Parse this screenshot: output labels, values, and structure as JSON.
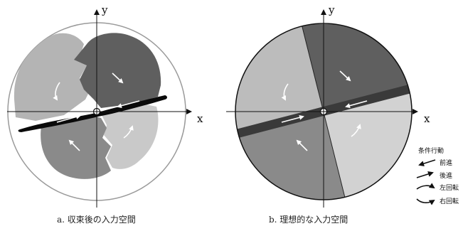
{
  "panel_a": {
    "caption": "a. 収束後の入力空間",
    "axis_x": "x",
    "axis_y": "y"
  },
  "panel_b": {
    "caption": "b. 理想的な入力空間",
    "axis_x": "x",
    "axis_y": "y"
  },
  "legend": {
    "title": "条件行動",
    "items": [
      {
        "icon": "arrow-left-icon",
        "label": "前進"
      },
      {
        "icon": "arrow-right-icon",
        "label": "後進"
      },
      {
        "icon": "curve-left-icon",
        "label": "左回転"
      },
      {
        "icon": "curve-right-icon",
        "label": "右回転"
      }
    ]
  },
  "colors": {
    "dark": "#5a5a5a",
    "mid": "#8c8c8c",
    "light": "#bdbdbd",
    "lighter": "#d3d3d3",
    "band": "#3c3c3c"
  }
}
